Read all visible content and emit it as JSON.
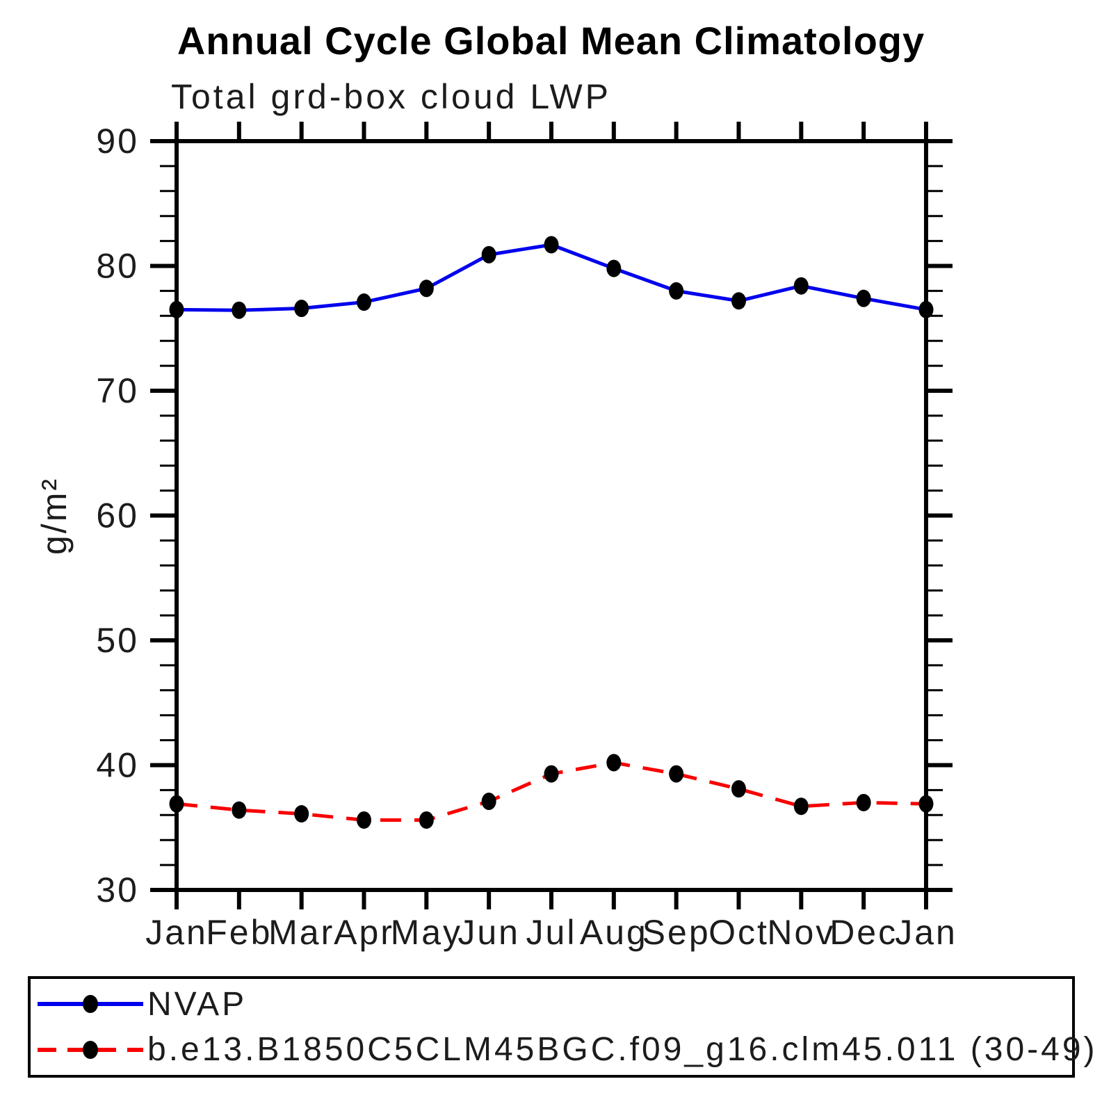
{
  "chart_data": {
    "type": "line",
    "title": "Annual Cycle Global Mean Climatology",
    "subtitle": "Total grd-box cloud LWP",
    "ylabel": "g/m²",
    "ylim": [
      30,
      90
    ],
    "yticks_major": [
      30,
      40,
      50,
      60,
      70,
      80,
      90
    ],
    "ytick_minor_step": 2,
    "grid": false,
    "legend_position": "bottom",
    "categories": [
      "Jan",
      "Feb",
      "Mar",
      "Apr",
      "May",
      "Jun",
      "Jul",
      "Aug",
      "Sep",
      "Oct",
      "Nov",
      "Dec",
      "Jan"
    ],
    "series": [
      {
        "name": "NVAP",
        "color": "#0000ee",
        "style": "solid",
        "marker": "circle",
        "marker_color": "#000000",
        "values": [
          76.5,
          76.45,
          76.6,
          77.1,
          78.2,
          80.9,
          81.7,
          79.8,
          78.0,
          77.2,
          78.4,
          77.4,
          76.5
        ]
      },
      {
        "name": "b.e13.B1850C5CLM45BGC.f09_g16.clm45.011 (30-49)",
        "color": "#f80000",
        "style": "dashed",
        "marker": "circle",
        "marker_color": "#000000",
        "values": [
          36.9,
          36.4,
          36.1,
          35.6,
          35.6,
          37.1,
          39.3,
          40.2,
          39.3,
          38.1,
          36.7,
          37.0,
          36.9
        ]
      }
    ]
  }
}
